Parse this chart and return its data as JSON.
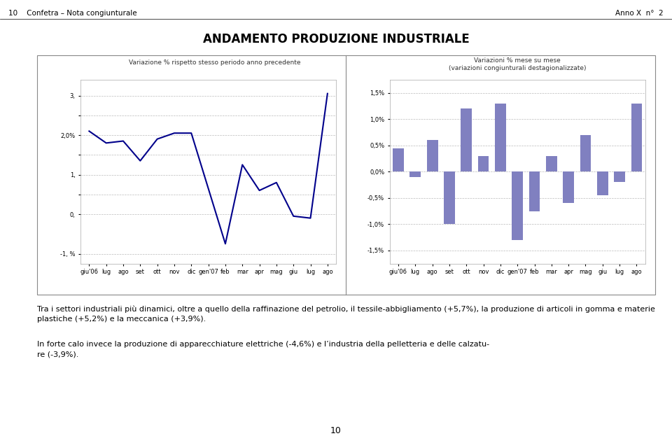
{
  "title": "ANDAMENTO PRODUZIONE INDUSTRIALE",
  "header_left": "10    Confetra – Nota congiunturale",
  "header_right": "Anno X  n°  2",
  "left_chart_title": "Variazione % rispetto stesso periodo anno precedente",
  "right_chart_title": "Variazioni % mese su mese\n(variazioni congiunturali destagionalizzate)",
  "categories": [
    "giu'06",
    "lug",
    "ago",
    "set",
    "ott",
    "nov",
    "dic",
    "gen'07",
    "feb",
    "mar",
    "apr",
    "mag",
    "giu",
    "lug",
    "ago"
  ],
  "line_values": [
    2.1,
    1.8,
    1.85,
    1.35,
    1.9,
    2.05,
    2.05,
    0.65,
    -0.75,
    1.25,
    0.6,
    0.8,
    -0.05,
    -0.1,
    3.05
  ],
  "bar_values": [
    0.45,
    -0.1,
    0.6,
    -1.0,
    1.2,
    0.3,
    1.3,
    -1.3,
    -0.75,
    0.3,
    -0.6,
    0.7,
    -0.45,
    -0.2,
    1.3
  ],
  "line_color": "#00008B",
  "bar_color_pos": "#8080C0",
  "bar_color_neg": "#8080C0",
  "left_ytick_values": [
    -1.0,
    0.0,
    0.5,
    1.0,
    1.5,
    2.0,
    2.5,
    3.0
  ],
  "left_ytick_labels": [
    "-1, %",
    "0,",
    "",
    "1,",
    "",
    "2,0%",
    "",
    "3,"
  ],
  "right_ytick_values": [
    -1.5,
    -1.0,
    -0.5,
    0.0,
    0.5,
    1.0,
    1.5
  ],
  "right_ytick_labels": [
    "-1,5%",
    "-1,0%",
    "-0,5%",
    "0,0%",
    "0,5%",
    "1,0%",
    "1,5%"
  ],
  "left_ylim": [
    -1.25,
    3.4
  ],
  "right_ylim": [
    -1.75,
    1.75
  ],
  "bg_color": "#ffffff",
  "chart_bg": "#ffffff",
  "grid_color": "#bbbbbb",
  "text_para1": "Tra i settori industriali più dinamici, oltre a quello della raffinazione del petrolio, il tessile-abbigliamento (+5,7%), la produzione di articoli in gomma e materie plastiche (+5,2%) e la meccanica (+3,9%).",
  "text_para2": "In forte calo invece la produzione di apparecchiature elettriche (-4,6%) e l’industria della pelletteria e delle calzatu-\nre (-3,9%).",
  "footer_text": "10"
}
